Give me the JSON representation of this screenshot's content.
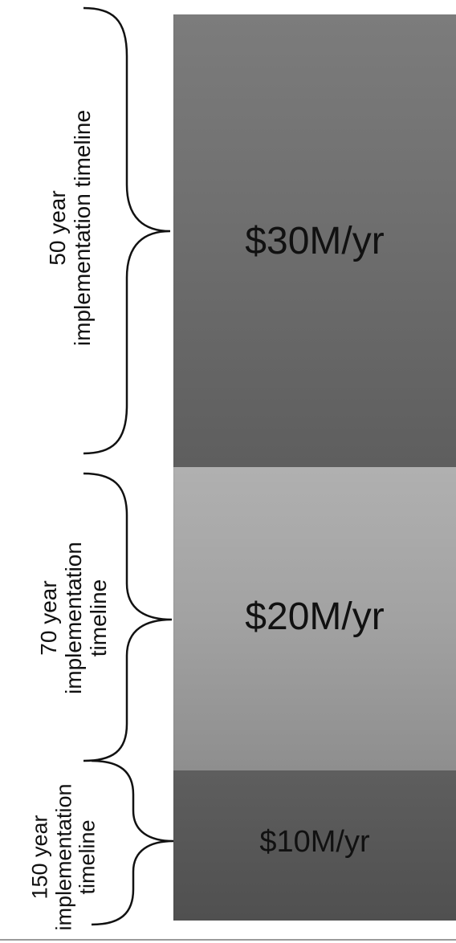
{
  "blocks": [
    {
      "id": "30",
      "label": "$30M/yr",
      "color": "#6f6f6f"
    },
    {
      "id": "20",
      "label": "$20M/yr",
      "color": "#a2a2a2"
    },
    {
      "id": "10",
      "label": "$10M/yr",
      "color": "#555555"
    }
  ],
  "timelines": [
    {
      "line1": "50 year",
      "line2": "implementation timeline"
    },
    {
      "line1": "70 year",
      "line2": "implementation",
      "line3": "timeline"
    },
    {
      "line1": "150 year",
      "line2": "implementation",
      "line3": "timeline"
    }
  ]
}
